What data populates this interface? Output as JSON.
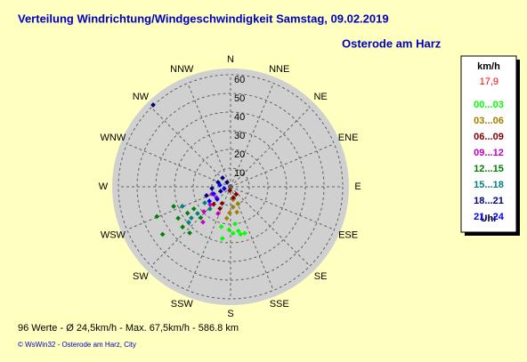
{
  "chart_data": {
    "type": "scatter",
    "coordinates": "polar",
    "title": "Verteilung Windrichtung/Windgeschwindigkeit  Samstag, 09.02.2019",
    "subtitle": "Osterode am Harz",
    "directions": [
      "N",
      "NNE",
      "NE",
      "ENE",
      "E",
      "ESE",
      "SE",
      "SSE",
      "S",
      "SSW",
      "SW",
      "WSW",
      "W",
      "WNW",
      "NW",
      "NNW"
    ],
    "rlim": [
      0,
      60
    ],
    "rticks": [
      10,
      20,
      30,
      40,
      50,
      60
    ],
    "grid": true,
    "legend": {
      "unit": "km/h",
      "current": "17,9",
      "current_color": "#ff0000",
      "footer": "Uhr",
      "position": "right"
    },
    "series": [
      {
        "name": "00...03",
        "color": "#00ff00",
        "direction": [
          177,
          170,
          163,
          182,
          168,
          189,
          173,
          193
        ],
        "values": [
          25,
          24,
          26,
          23,
          26,
          28,
          20,
          22
        ]
      },
      {
        "name": "03...06",
        "color": "#a08000",
        "direction": [
          173,
          182,
          166,
          187,
          169,
          156
        ],
        "values": [
          11,
          14,
          14,
          17,
          7,
          10
        ]
      },
      {
        "name": "06...09",
        "color": "#800000",
        "direction": [
          166,
          206,
          224,
          191,
          207,
          143
        ],
        "values": [
          6,
          13,
          13,
          2,
          10,
          5
        ]
      },
      {
        "name": "09...12",
        "color": "#c000c0",
        "direction": [
          233,
          229,
          227,
          218,
          249,
          205
        ],
        "values": [
          9.5,
          14.5,
          19.5,
          24,
          10.7,
          15.8
        ]
      },
      {
        "name": "12...15",
        "color": "#008000",
        "direction": [
          239,
          238.5,
          239,
          235,
          248,
          251,
          230,
          224,
          221.5
        ],
        "values": [
          32.7,
          27,
          22.9,
          44.4,
          42.5,
          32.2,
          33.5,
          23,
          33
        ]
      },
      {
        "name": "15...18",
        "color": "#008080",
        "direction": [
          248,
          231.5,
          231,
          238,
          229.6,
          223
        ],
        "values": [
          27.8,
          26.8,
          22.7,
          16.3,
          29.4,
          16.2
        ]
      },
      {
        "name": "18...21",
        "color": "#000080",
        "direction": [
          316.6,
          290,
          265,
          318,
          250,
          246,
          321
        ],
        "values": [
          60.3,
          7.1,
          10,
          6.4,
          13.7,
          5.8,
          3
        ]
      },
      {
        "name": "21...24",
        "color": "#0000ff",
        "direction": [
          227,
          247,
          254,
          279,
          236
        ],
        "values": [
          9.8,
          9.8,
          3.5,
          5.8,
          13.7
        ]
      }
    ],
    "stats": "96 Werte   -   Ø 24,5km/h  -  Max. 67,5km/h   -   586.8 km",
    "credit": "© WsWin32  -  Osterode am Harz, City"
  }
}
